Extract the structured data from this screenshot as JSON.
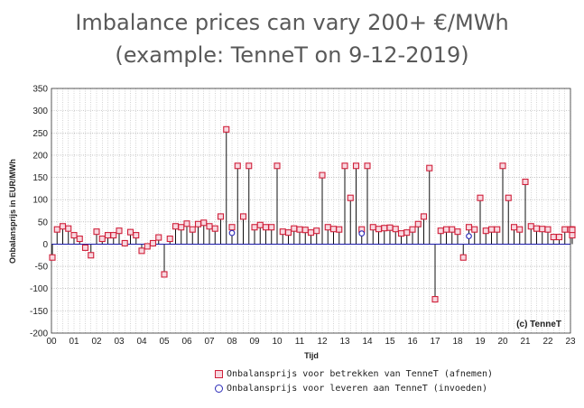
{
  "title_line1": "Imbalance prices can vary 200+ €/MWh",
  "title_line2": "(example: TenneT on 9-12-2019)",
  "chart_data": {
    "type": "scatter",
    "xlabel": "Tijd",
    "ylabel": "Onbalansprijs in EUR/MWh",
    "ylim": [
      -200,
      350
    ],
    "xlim": [
      0,
      23
    ],
    "yticks": [
      350,
      300,
      250,
      200,
      150,
      100,
      50,
      0,
      -50,
      -100,
      -150,
      -200
    ],
    "xticks": [
      "00",
      "01",
      "02",
      "03",
      "04",
      "05",
      "06",
      "07",
      "08",
      "09",
      "10",
      "11",
      "12",
      "13",
      "14",
      "15",
      "16",
      "17",
      "18",
      "19",
      "20",
      "21",
      "22",
      "23"
    ],
    "annotation": "(c) TenneT",
    "grid": true,
    "legend_position": "bottom",
    "series": [
      {
        "name": "Onbalansprijs voor betrekken van TenneT (afnemen)",
        "color": "#d0203a",
        "marker": "square",
        "points": [
          [
            0.0,
            -30
          ],
          [
            0.25,
            33
          ],
          [
            0.5,
            40
          ],
          [
            0.75,
            35
          ],
          [
            1.0,
            20
          ],
          [
            1.25,
            12
          ],
          [
            1.5,
            -8
          ],
          [
            1.75,
            -25
          ],
          [
            2.0,
            28
          ],
          [
            2.25,
            12
          ],
          [
            2.5,
            20
          ],
          [
            2.75,
            20
          ],
          [
            3.0,
            30
          ],
          [
            3.25,
            2
          ],
          [
            3.5,
            27
          ],
          [
            3.75,
            20
          ],
          [
            4.0,
            -15
          ],
          [
            4.25,
            -5
          ],
          [
            4.5,
            2
          ],
          [
            4.75,
            15
          ],
          [
            5.0,
            -68
          ],
          [
            5.25,
            12
          ],
          [
            5.5,
            40
          ],
          [
            5.75,
            38
          ],
          [
            6.0,
            46
          ],
          [
            6.25,
            33
          ],
          [
            6.5,
            45
          ],
          [
            6.75,
            48
          ],
          [
            7.0,
            40
          ],
          [
            7.25,
            35
          ],
          [
            7.5,
            62
          ],
          [
            7.75,
            258
          ],
          [
            8.0,
            38
          ],
          [
            8.25,
            176
          ],
          [
            8.5,
            62
          ],
          [
            8.75,
            176
          ],
          [
            9.0,
            38
          ],
          [
            9.25,
            43
          ],
          [
            9.5,
            38
          ],
          [
            9.75,
            38
          ],
          [
            10.0,
            176
          ],
          [
            10.25,
            28
          ],
          [
            10.5,
            26
          ],
          [
            10.75,
            35
          ],
          [
            11.0,
            33
          ],
          [
            11.25,
            32
          ],
          [
            11.5,
            26
          ],
          [
            11.75,
            30
          ],
          [
            12.0,
            155
          ],
          [
            12.25,
            38
          ],
          [
            12.5,
            34
          ],
          [
            12.75,
            33
          ],
          [
            13.0,
            176
          ],
          [
            13.25,
            104
          ],
          [
            13.5,
            176
          ],
          [
            13.75,
            33
          ],
          [
            14.0,
            176
          ],
          [
            14.25,
            38
          ],
          [
            14.5,
            34
          ],
          [
            14.75,
            36
          ],
          [
            15.0,
            37
          ],
          [
            15.25,
            34
          ],
          [
            15.5,
            24
          ],
          [
            15.75,
            26
          ],
          [
            16.0,
            33
          ],
          [
            16.25,
            45
          ],
          [
            16.5,
            62
          ],
          [
            16.75,
            171
          ],
          [
            17.0,
            -124
          ],
          [
            17.25,
            30
          ],
          [
            17.5,
            33
          ],
          [
            17.75,
            33
          ],
          [
            18.0,
            28
          ],
          [
            18.25,
            -30
          ],
          [
            18.5,
            38
          ],
          [
            18.75,
            33
          ],
          [
            19.0,
            104
          ],
          [
            19.25,
            30
          ],
          [
            19.5,
            33
          ],
          [
            19.75,
            33
          ],
          [
            20.0,
            176
          ],
          [
            20.25,
            104
          ],
          [
            20.5,
            38
          ],
          [
            20.75,
            33
          ],
          [
            21.0,
            140
          ],
          [
            21.25,
            40
          ],
          [
            21.5,
            35
          ],
          [
            21.75,
            34
          ],
          [
            22.0,
            33
          ],
          [
            22.25,
            16
          ],
          [
            22.5,
            16
          ],
          [
            22.75,
            33
          ],
          [
            23.0,
            33
          ],
          [
            23.25,
            33
          ],
          [
            23.5,
            32
          ],
          [
            23.75,
            20
          ]
        ]
      },
      {
        "name": "Onbalansprijs voor leveren aan TenneT (invoeden)",
        "color": "#2a2ab8",
        "marker": "circle",
        "points": [
          [
            8.0,
            25
          ],
          [
            13.75,
            24
          ],
          [
            18.5,
            18
          ]
        ]
      }
    ]
  }
}
